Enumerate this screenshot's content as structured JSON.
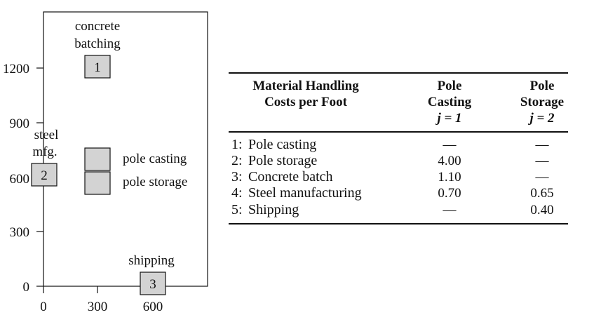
{
  "diagram": {
    "y_ticks": [
      "1200",
      "900",
      "600",
      "300",
      "0"
    ],
    "x_ticks": [
      "0",
      "300",
      "600"
    ],
    "facilities": [
      {
        "id": "1",
        "label_lines": [
          "concrete",
          "batching"
        ]
      },
      {
        "id": "2",
        "label_lines": [
          "steel",
          "mfg."
        ]
      },
      {
        "id": "3",
        "label_lines": [
          "shipping"
        ]
      },
      {
        "id": "",
        "label_lines": [
          "pole casting"
        ]
      },
      {
        "id": "",
        "label_lines": [
          "pole storage"
        ]
      }
    ]
  },
  "table": {
    "header": {
      "col0": [
        "Material Handling",
        "Costs per Foot"
      ],
      "col1": [
        "Pole",
        "Casting",
        "j = 1"
      ],
      "col2": [
        "Pole",
        "Storage",
        "j = 2"
      ]
    },
    "rows": [
      {
        "num": "1:",
        "name": "Pole casting",
        "j1": "—",
        "j2": "—"
      },
      {
        "num": "2:",
        "name": "Pole storage",
        "j1": "4.00",
        "j2": "—"
      },
      {
        "num": "3:",
        "name": "Concrete batch",
        "j1": "1.10",
        "j2": "—"
      },
      {
        "num": "4:",
        "name": "Steel manufacturing",
        "j1": "0.70",
        "j2": "0.65"
      },
      {
        "num": "5:",
        "name": "Shipping",
        "j1": "—",
        "j2": "0.40"
      }
    ]
  }
}
